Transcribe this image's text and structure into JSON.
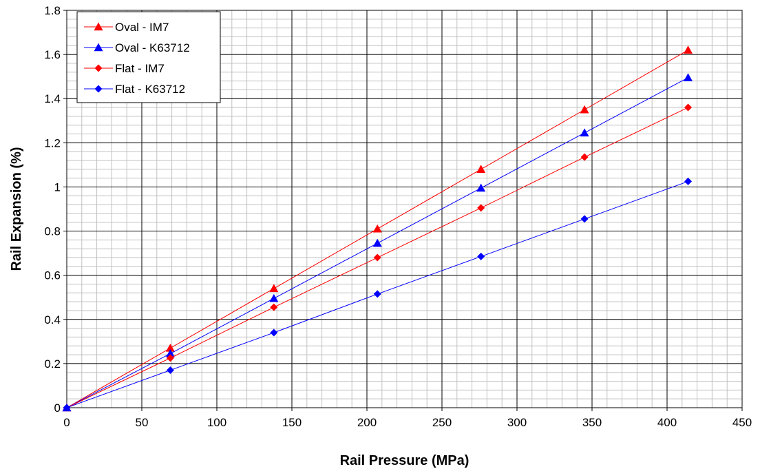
{
  "chart_data": {
    "type": "line",
    "xlabel": "Rail Pressure (MPa)",
    "ylabel": "Rail Expansion (%)",
    "xlim": [
      0,
      450
    ],
    "ylim": [
      0,
      1.8
    ],
    "x_ticks": [
      "0",
      "50",
      "100",
      "150",
      "200",
      "250",
      "300",
      "350",
      "400",
      "450"
    ],
    "y_ticks": [
      "0",
      "0.2",
      "0.4",
      "0.6",
      "0.8",
      "1",
      "1.2",
      "1.4",
      "1.6",
      "1.8"
    ],
    "major_grid": true,
    "minor_grid": true,
    "legend_position": "top-left",
    "series": [
      {
        "name": "Oval - IM7",
        "color": "#ff0000",
        "marker": "triangle",
        "x": [
          0,
          69,
          138,
          207,
          276,
          345,
          414
        ],
        "y": [
          0,
          0.27,
          0.54,
          0.81,
          1.08,
          1.35,
          1.62
        ]
      },
      {
        "name": "Oval - K63712",
        "color": "#0000ff",
        "marker": "triangle",
        "x": [
          0,
          69,
          138,
          207,
          276,
          345,
          414
        ],
        "y": [
          0,
          0.245,
          0.495,
          0.745,
          0.995,
          1.245,
          1.495
        ]
      },
      {
        "name": "Flat - IM7",
        "color": "#ff0000",
        "marker": "diamond",
        "x": [
          0,
          69,
          138,
          207,
          276,
          345,
          414
        ],
        "y": [
          0,
          0.225,
          0.455,
          0.68,
          0.905,
          1.135,
          1.36
        ]
      },
      {
        "name": "Flat - K63712",
        "color": "#0000ff",
        "marker": "diamond",
        "x": [
          0,
          69,
          138,
          207,
          276,
          345,
          414
        ],
        "y": [
          0,
          0.17,
          0.34,
          0.515,
          0.685,
          0.855,
          1.025
        ]
      }
    ]
  }
}
